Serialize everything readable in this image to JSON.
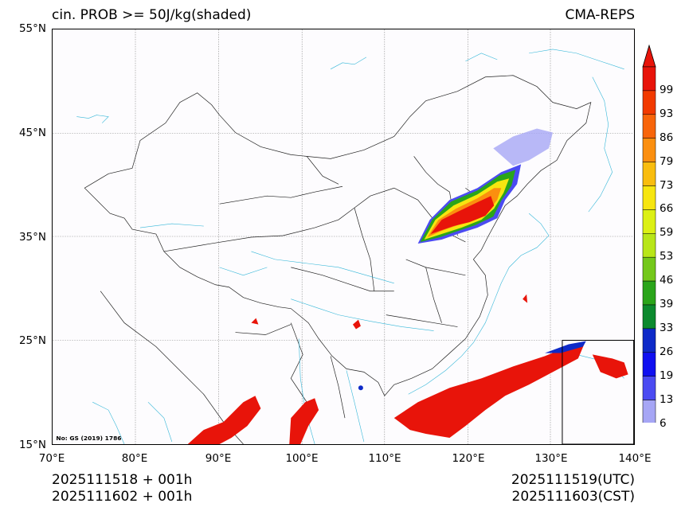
{
  "header": {
    "title_left": "cin. PROB >= 50J/kg(shaded)",
    "title_right": "CMA-REPS"
  },
  "axes": {
    "lat_labels": [
      "55°N",
      "45°N",
      "35°N",
      "25°N",
      "15°N"
    ],
    "lon_labels": [
      "70°E",
      "80°E",
      "90°E",
      "100°E",
      "110°E",
      "120°E",
      "130°E",
      "140°E"
    ]
  },
  "map": {
    "attribution": "No: GS (2019) 1786",
    "extent": {
      "lon_min": 70,
      "lon_max": 140,
      "lat_min": 15,
      "lat_max": 55
    }
  },
  "colorbar": {
    "labels": [
      "99",
      "93",
      "86",
      "79",
      "73",
      "66",
      "59",
      "53",
      "46",
      "39",
      "33",
      "26",
      "19",
      "13",
      "6"
    ],
    "colors": [
      "#e8140a",
      "#f23a00",
      "#f8650a",
      "#fb8f0f",
      "#f9bd0e",
      "#f7e610",
      "#dcf014",
      "#b8e618",
      "#74c81a",
      "#2aa51a",
      "#0c8a2e",
      "#0e2ac8",
      "#1010f0",
      "#4b4bf2",
      "#a6a6f5"
    ],
    "over_color": "#e8140a",
    "under_color": "#ffffff"
  },
  "footer": {
    "left_line1": "2025111518  +  001h",
    "left_line2": "2025111602  +  001h",
    "right_line1": "2025111519(UTC)",
    "right_line2": "2025111603(CST)"
  }
}
